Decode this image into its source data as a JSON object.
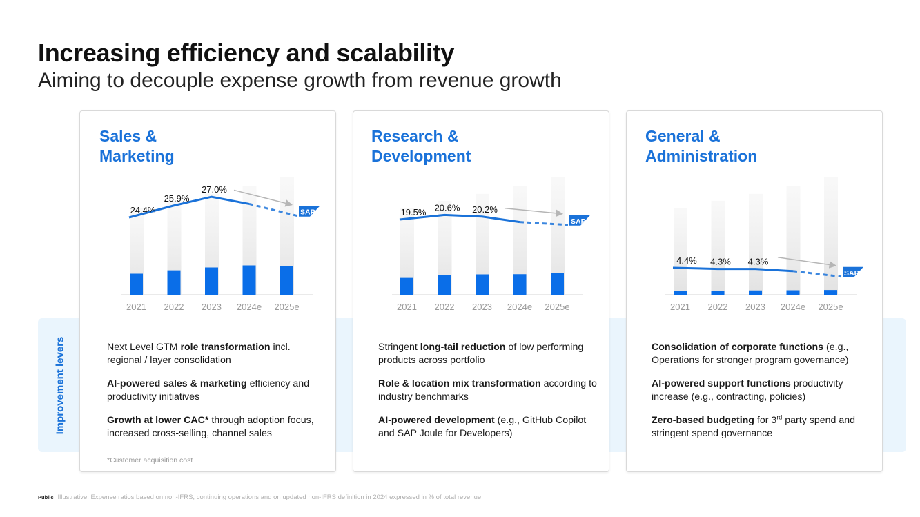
{
  "page": {
    "title": "Increasing efficiency and scalability",
    "subtitle": "Aiming to decouple expense growth from revenue growth"
  },
  "band_label": "Improvement levers",
  "footer": {
    "public": "Public",
    "note": "Illustrative. Expense ratios based on non-IFRS, continuing operations and on updated non-IFRS definition in 2024 expressed in % of total revenue."
  },
  "logo_text": "SAP",
  "colors": {
    "accent": "#1a72d9",
    "bar_blue": "#0a6ee8",
    "band": "#eaf5fd"
  },
  "cards": [
    {
      "heading_line1": "Sales &",
      "heading_line2": "Marketing",
      "levers": [
        {
          "pre": "Next Level GTM ",
          "bold": "role transformation",
          "post": " incl. regional / layer consolidation"
        },
        {
          "pre": "",
          "bold": "AI-powered sales & marketing",
          "post": " efficiency and productivity initiatives"
        },
        {
          "pre": "",
          "bold": "Growth at lower CAC*",
          "post": " through adoption focus, increased cross-selling, channel sales"
        }
      ],
      "footnote": "*Customer acquisition cost"
    },
    {
      "heading_line1": "Research &",
      "heading_line2": "Development",
      "levers": [
        {
          "pre": "Stringent ",
          "bold": "long-tail reduction",
          "post": " of low performing products across portfolio"
        },
        {
          "pre": "",
          "bold": "Role & location mix transformation",
          "post": " according to industry benchmarks"
        },
        {
          "pre": "",
          "bold": "AI-powered development",
          "post": " (e.g., GitHub Copilot and SAP Joule for Developers)"
        }
      ],
      "footnote": ""
    },
    {
      "heading_line1": "General &",
      "heading_line2": "Administration",
      "levers": [
        {
          "pre": "",
          "bold": "Consolidation of corporate functions",
          "post": " (e.g., Operations for stronger program governance)"
        },
        {
          "pre": "",
          "bold": "AI-powered support functions",
          "post": " productivity increase (e.g., contracting, policies)"
        },
        {
          "pre": "",
          "bold": "Zero-based budgeting",
          "post": " for 3rd party spend and stringent spend governance",
          "sup": true
        }
      ],
      "footnote": ""
    }
  ],
  "chart_data": [
    {
      "type": "bar+line",
      "title": "Sales & Marketing",
      "categories": [
        "2021",
        "2022",
        "2023",
        "2024e",
        "2025e"
      ],
      "revenue_index": [
        100,
        109,
        117,
        126,
        136
      ],
      "expense_index": [
        24.4,
        28.3,
        31.6,
        34.0,
        33.5
      ],
      "ratio_values": [
        24.4,
        25.9,
        27.0,
        26.1,
        24.6
      ],
      "ratio_labels": [
        "24.4%",
        "25.9%",
        "27.0%",
        "",
        ""
      ],
      "ratio_solid_until": 3,
      "unit": "% of total revenue"
    },
    {
      "type": "bar+line",
      "title": "Research & Development",
      "categories": [
        "2021",
        "2022",
        "2023",
        "2024e",
        "2025e"
      ],
      "revenue_index": [
        100,
        109,
        117,
        126,
        136
      ],
      "expense_index": [
        19.5,
        22.5,
        23.6,
        23.8,
        25.0
      ],
      "ratio_values": [
        19.5,
        20.6,
        20.2,
        18.9,
        18.2
      ],
      "ratio_labels": [
        "19.5%",
        "20.6%",
        "20.2%",
        "",
        ""
      ],
      "ratio_solid_until": 3,
      "unit": "% of total revenue"
    },
    {
      "type": "bar+line",
      "title": "General & Administration",
      "categories": [
        "2021",
        "2022",
        "2023",
        "2024e",
        "2025e"
      ],
      "revenue_index": [
        100,
        109,
        117,
        126,
        136
      ],
      "expense_index": [
        4.4,
        4.7,
        5.0,
        5.2,
        5.5
      ],
      "ratio_values": [
        4.4,
        4.3,
        4.3,
        4.1,
        3.6
      ],
      "ratio_labels": [
        "4.4%",
        "4.3%",
        "4.3%",
        "",
        ""
      ],
      "ratio_solid_until": 3,
      "unit": "% of total revenue"
    }
  ]
}
